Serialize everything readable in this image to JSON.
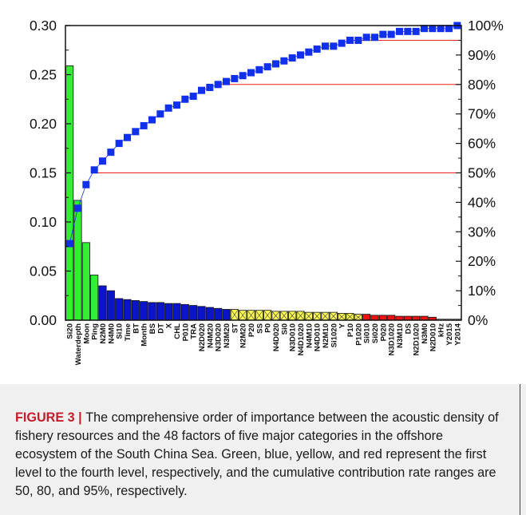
{
  "chart_data": {
    "type": "bar",
    "categories": [
      "Si20",
      "Waterdepth",
      "Moon",
      "Ping",
      "N2M0",
      "N4M0",
      "Si10",
      "Time",
      "BT",
      "Month",
      "BS",
      "DT",
      "X",
      "CHL",
      "P010",
      "TRA",
      "N2D020",
      "N4M20",
      "N3D020",
      "N3M20",
      "ST",
      "N2M20",
      "P20",
      "SS",
      "P0",
      "N4D020",
      "Si0",
      "N3D010",
      "N4D1020",
      "N4M10",
      "N4D010",
      "N2M10",
      "Si1020",
      "Y",
      "P10",
      "P1020",
      "Si010",
      "Si020",
      "P020",
      "N3D1020",
      "N3M10",
      "DS",
      "N2D1020",
      "N3M0",
      "N2D010",
      "kHz",
      "Y2015",
      "Y2014"
    ],
    "values": [
      0.259,
      0.122,
      0.079,
      0.046,
      0.035,
      0.03,
      0.022,
      0.021,
      0.02,
      0.019,
      0.018,
      0.018,
      0.017,
      0.017,
      0.016,
      0.015,
      0.014,
      0.013,
      0.012,
      0.011,
      0.011,
      0.01,
      0.01,
      0.01,
      0.01,
      0.009,
      0.009,
      0.009,
      0.009,
      0.008,
      0.008,
      0.008,
      0.008,
      0.007,
      0.007,
      0.006,
      0.006,
      0.005,
      0.005,
      0.005,
      0.004,
      0.004,
      0.004,
      0.004,
      0.003,
      0.001,
      0.001,
      0.001
    ],
    "levels": [
      1,
      1,
      1,
      1,
      2,
      2,
      2,
      2,
      2,
      2,
      2,
      2,
      2,
      2,
      2,
      2,
      2,
      2,
      2,
      2,
      3,
      3,
      3,
      3,
      3,
      3,
      3,
      3,
      3,
      3,
      3,
      3,
      3,
      3,
      3,
      3,
      4,
      4,
      4,
      4,
      4,
      4,
      4,
      4,
      4,
      0,
      0,
      0
    ],
    "cumulative_percent": [
      26,
      38,
      46,
      51,
      54,
      57,
      60,
      62,
      64,
      66,
      68,
      70,
      72,
      73,
      75,
      76,
      78,
      79,
      80,
      81,
      82,
      83,
      84,
      85,
      86,
      87,
      88,
      89,
      90,
      91,
      92,
      93,
      93,
      94,
      95,
      95,
      96,
      96,
      97,
      97,
      98,
      98,
      98,
      99,
      99,
      99,
      99,
      100
    ],
    "thresholds_percent": [
      50,
      80,
      95
    ],
    "y_left": {
      "ylim": [
        0,
        0.3
      ],
      "ticks": [
        "0.00",
        "0.05",
        "0.10",
        "0.15",
        "0.20",
        "0.25",
        "0.30"
      ]
    },
    "y_right": {
      "ylim": [
        0,
        100
      ],
      "ticks": [
        "0%",
        "10%",
        "20%",
        "30%",
        "40%",
        "50%",
        "60%",
        "70%",
        "80%",
        "90%",
        "100%"
      ]
    },
    "grid": false,
    "colors": {
      "level1": "#33ee33",
      "level2": "#0a14c8",
      "level3": "#ffff55",
      "level4": "#ee1111",
      "level0": "#ffffff",
      "cumulative_marker": "#1030ee",
      "threshold_line": "#ee2020",
      "frame": "#111111"
    }
  },
  "caption": {
    "label": "FIGURE 3",
    "separator": " | ",
    "text": "The comprehensive order of importance between the acoustic density of fishery resources and the 48 factors of five major categories in the offshore ecosystem of the South China Sea. Green, blue, yellow, and red represent the first level to the fourth level, respectively, and the cumulative contribution rate ranges are 50, 80, and 95%, respectively."
  }
}
